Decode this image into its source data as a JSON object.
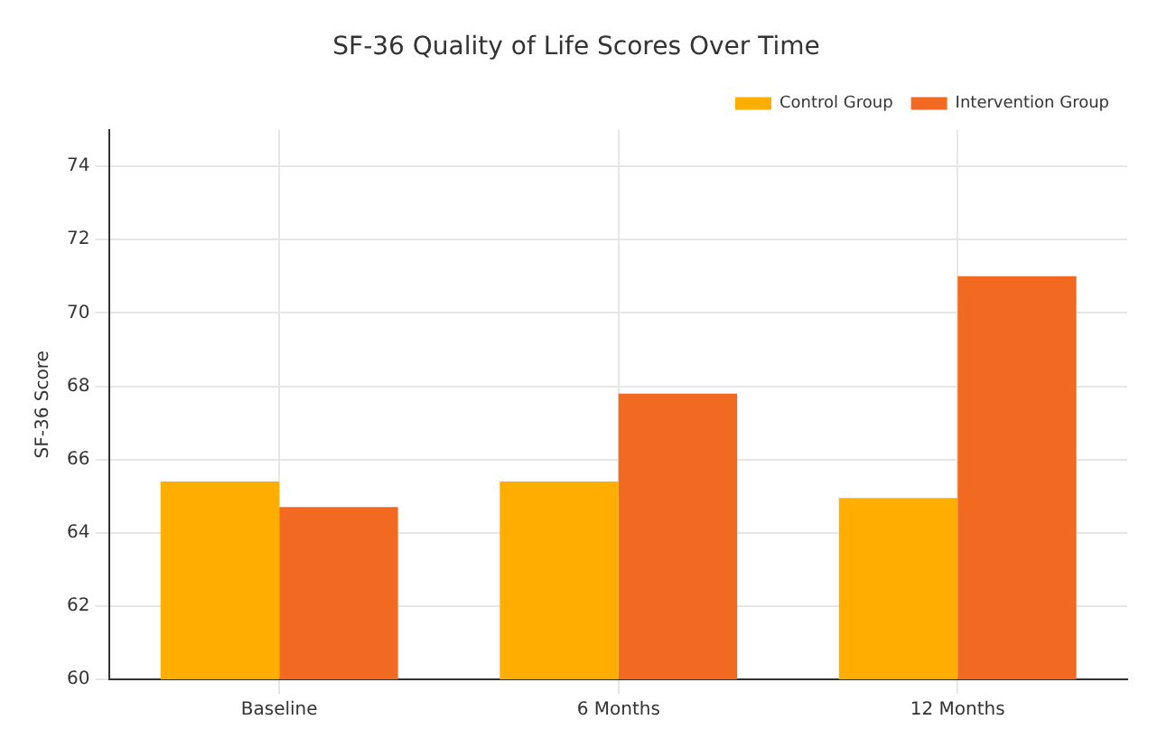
{
  "chart_data": {
    "type": "bar",
    "title": "SF-36 Quality of Life Scores Over Time",
    "ylabel": "SF-36 Score",
    "categories": [
      "Baseline",
      "6 Months",
      "12 Months"
    ],
    "series": [
      {
        "name": "Control Group",
        "color": "#ffae00",
        "values": [
          65.4,
          65.4,
          64.95
        ]
      },
      {
        "name": "Intervention Group",
        "color": "#f26a22",
        "values": [
          64.7,
          67.8,
          71
        ]
      }
    ],
    "ylim": [
      60,
      75
    ],
    "yticks": [
      60,
      62,
      64,
      66,
      68,
      70,
      72,
      74
    ],
    "grid": true,
    "legend": "top right"
  }
}
